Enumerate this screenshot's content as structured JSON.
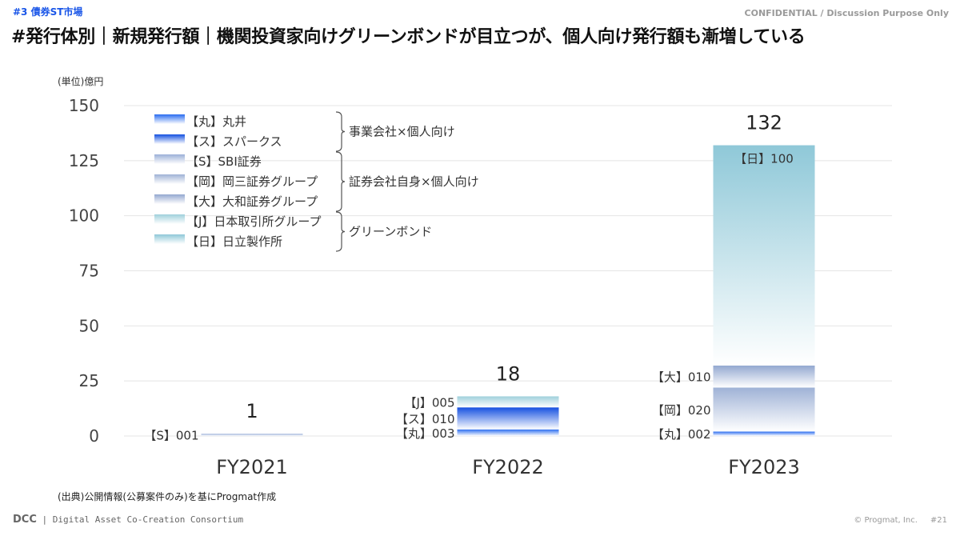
{
  "header": {
    "section_tag": "#3  債券ST市場",
    "confidential": "CONFIDENTIAL / Discussion Purpose Only",
    "title": "#発行体別｜新規発行額｜機関投資家向けグリーンボンドが目立つが、個人向け発行額も漸増している"
  },
  "footer": {
    "source": "(出典)公開情報(公募案件のみ)を基にProgmat作成",
    "logo": "DCC",
    "org": "Digital Asset Co-Creation Consortium",
    "copyright": "© Progmat, Inc.",
    "page": "#21"
  },
  "colors": {
    "maru": "#2a6cf0",
    "su": "#1450e0",
    "sbi": "#9bb0d8",
    "oka": "#9fb2d6",
    "dai": "#93a8d0",
    "j": "#9fd0dc",
    "hi": "#8fc8d8"
  },
  "chart_data": {
    "type": "bar",
    "stacked": true,
    "unit_label": "(単位)億円",
    "ylim": [
      0,
      150
    ],
    "yticks": [
      0,
      25,
      50,
      75,
      100,
      125,
      150
    ],
    "grid": true,
    "categories": [
      "FY2021",
      "FY2022",
      "FY2023"
    ],
    "totals": [
      "1",
      "18",
      "132"
    ],
    "series": [
      {
        "key": "maru",
        "name": "【丸】丸井",
        "values": [
          0,
          3,
          2
        ],
        "labels": [
          "",
          "【丸】003",
          "【丸】002"
        ]
      },
      {
        "key": "su",
        "name": "【ス】スパークス",
        "values": [
          0,
          10,
          0
        ],
        "labels": [
          "",
          "【ス】010",
          ""
        ]
      },
      {
        "key": "sbi",
        "name": "【S】SBI証券",
        "values": [
          1,
          0,
          0
        ],
        "labels": [
          "【S】001",
          "",
          ""
        ]
      },
      {
        "key": "oka",
        "name": "【岡】岡三証券グループ",
        "values": [
          0,
          0,
          20
        ],
        "labels": [
          "",
          "",
          "【岡】020"
        ]
      },
      {
        "key": "dai",
        "name": "【大】大和証券グループ",
        "values": [
          0,
          0,
          10
        ],
        "labels": [
          "",
          "",
          "【大】010"
        ]
      },
      {
        "key": "j",
        "name": "【J】日本取引所グループ",
        "values": [
          0,
          5,
          0
        ],
        "labels": [
          "",
          "【J】005",
          ""
        ]
      },
      {
        "key": "hi",
        "name": "【日】日立製作所",
        "values": [
          0,
          0,
          100
        ],
        "labels": [
          "",
          "",
          "【日】100"
        ]
      }
    ],
    "legend_groups": [
      {
        "label": "事業会社×個人向け",
        "members": [
          "maru",
          "su"
        ]
      },
      {
        "label": "証券会社自身×個人向け",
        "members": [
          "sbi",
          "oka",
          "dai"
        ]
      },
      {
        "label": "グリーンボンド",
        "members": [
          "j",
          "hi"
        ]
      }
    ],
    "legend_position": "top-left"
  }
}
